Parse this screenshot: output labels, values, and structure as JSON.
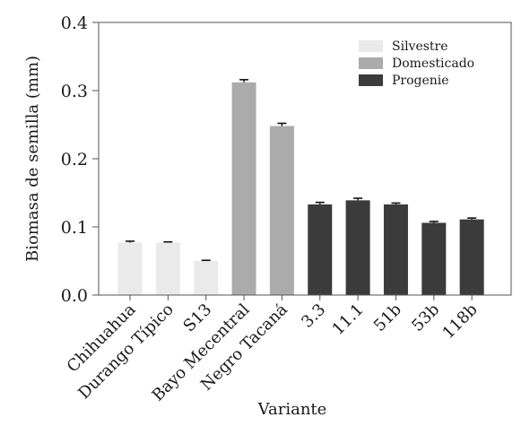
{
  "chart_data": {
    "type": "bar",
    "xlabel": "Variante",
    "ylabel": "Biomasa de semilla (mm)",
    "ylim": [
      0,
      0.4
    ],
    "yticks": [
      "0.0",
      "0.1",
      "0.2",
      "0.3",
      "0.4"
    ],
    "ytick_values": [
      0,
      0.1,
      0.2,
      0.3,
      0.4
    ],
    "grid": false,
    "legend_position": "top-right",
    "categories": [
      "Chihuahua",
      "Durango Típico",
      "S13",
      "Bayo Mecentral",
      "Negro Tacaná",
      "3.3",
      "11.1",
      "51b",
      "53b",
      "118b"
    ],
    "values": [
      0.077,
      0.077,
      0.05,
      0.312,
      0.248,
      0.133,
      0.139,
      0.133,
      0.106,
      0.111
    ],
    "errors": [
      0.002,
      0.001,
      0.001,
      0.004,
      0.004,
      0.003,
      0.003,
      0.002,
      0.002,
      0.002
    ],
    "groups": [
      "Silvestre",
      "Silvestre",
      "Silvestre",
      "Domesticado",
      "Domesticado",
      "Progenie",
      "Progenie",
      "Progenie",
      "Progenie",
      "Progenie"
    ],
    "series": [
      {
        "name": "Silvestre",
        "color": "#eaeaea"
      },
      {
        "name": "Domesticado",
        "color": "#ababab"
      },
      {
        "name": "Progenie",
        "color": "#3b3b3b"
      }
    ]
  }
}
